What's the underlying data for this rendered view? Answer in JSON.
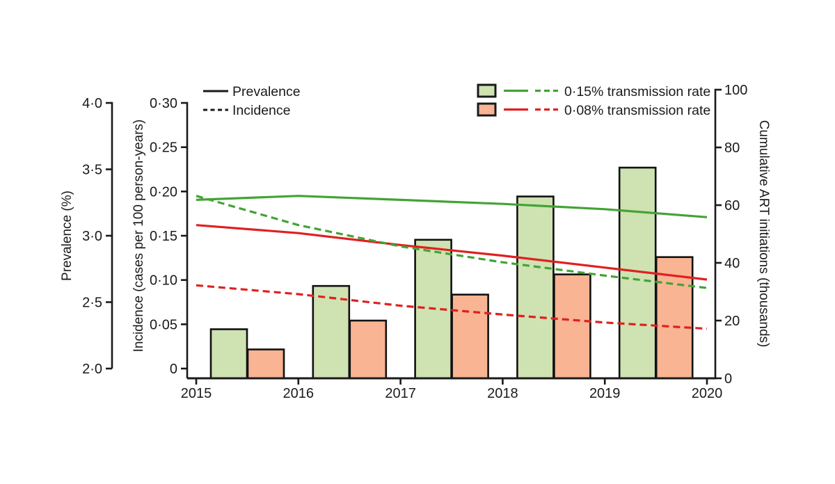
{
  "chart_data": {
    "type": "combo-bar-line",
    "x_years": [
      2015,
      2016,
      2017,
      2018,
      2019,
      2020
    ],
    "x_tick_labels": [
      "2015",
      "2016",
      "2017",
      "2018",
      "2019",
      "2020"
    ],
    "axes": {
      "prevalence": {
        "label": "Prevalence (%)",
        "range": [
          2.0,
          4.0
        ],
        "tick_labels": [
          "4·0",
          "3·5",
          "3·0",
          "2·5",
          "2·0"
        ],
        "tick_values": [
          4.0,
          3.5,
          3.0,
          2.5,
          2.0
        ]
      },
      "incidence": {
        "label": "Incidence (cases per 100 person-years)",
        "range": [
          0,
          0.3
        ],
        "tick_labels": [
          "0·30",
          "0·25",
          "0·20",
          "0·15",
          "0·10",
          "0·05",
          "0"
        ],
        "tick_values": [
          0.3,
          0.25,
          0.2,
          0.15,
          0.1,
          0.05,
          0
        ]
      },
      "art": {
        "label": "Cumulative ART initiations (thousands)",
        "range": [
          0,
          100
        ],
        "tick_labels": [
          "100",
          "80",
          "60",
          "40",
          "20",
          "0"
        ],
        "tick_values": [
          100,
          80,
          60,
          40,
          20,
          0
        ]
      }
    },
    "bars": {
      "axis": "art",
      "categories": [
        2015,
        2016,
        2017,
        2018,
        2019
      ],
      "series": [
        {
          "name": "0·15% transmission rate",
          "fill": "#cfe2b2",
          "values": [
            17,
            32,
            48,
            63,
            73
          ]
        },
        {
          "name": "0·08% transmission rate",
          "fill": "#f8b493",
          "values": [
            10,
            20,
            29,
            36,
            42
          ]
        }
      ]
    },
    "lines": [
      {
        "name": "Prevalence (0·15% transmission rate)",
        "axis": "prevalence",
        "style": "solid",
        "color": "#43a335",
        "values": [
          3.27,
          3.3,
          3.27,
          3.24,
          3.2,
          3.14
        ]
      },
      {
        "name": "Prevalence (0·08% transmission rate)",
        "axis": "prevalence",
        "style": "solid",
        "color": "#e02020",
        "values": [
          3.08,
          3.02,
          2.93,
          2.85,
          2.76,
          2.67
        ]
      },
      {
        "name": "Incidence (0·15% transmission rate)",
        "axis": "incidence",
        "style": "dashed",
        "color": "#43a335",
        "values": [
          0.195,
          0.162,
          0.138,
          0.12,
          0.105,
          0.091
        ]
      },
      {
        "name": "Incidence (0·08% transmission rate)",
        "axis": "incidence",
        "style": "dashed",
        "color": "#e02020",
        "values": [
          0.094,
          0.084,
          0.071,
          0.061,
          0.052,
          0.045
        ]
      }
    ],
    "legend_measures": [
      {
        "label": "Prevalence",
        "style": "solid"
      },
      {
        "label": "Incidence",
        "style": "dashed"
      }
    ],
    "legend_scenarios": [
      {
        "label": "0·15% transmission rate",
        "box_fill": "#cfe2b2",
        "line_color": "#43a335"
      },
      {
        "label": "0·08% transmission rate",
        "box_fill": "#f8b493",
        "line_color": "#e02020"
      }
    ],
    "colors": {
      "axis_ink": "#1a1a1a",
      "background": "#ffffff"
    }
  }
}
